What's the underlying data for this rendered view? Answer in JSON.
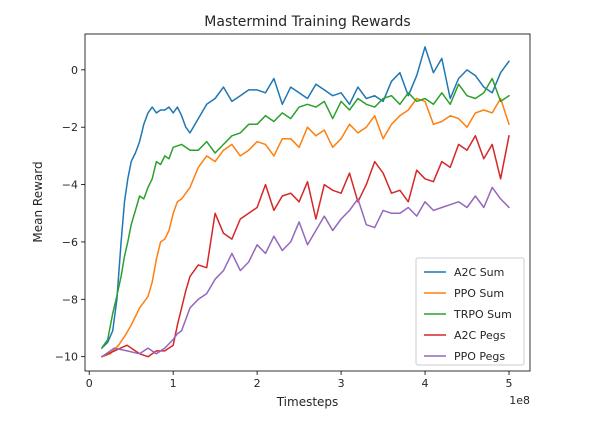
{
  "chart_data": {
    "type": "line",
    "title": "Mastermind Training Rewards",
    "xlabel": "Timesteps",
    "ylabel": "Mean Reward",
    "x_offset_label": "1e8",
    "xlim": [
      -0.05,
      5.25
    ],
    "ylim": [
      -10.5,
      1.25
    ],
    "xticks": [
      0,
      1,
      2,
      3,
      4,
      5
    ],
    "yticks": [
      -10,
      -8,
      -6,
      -4,
      -2,
      0
    ],
    "legend_position": "lower-right",
    "grid": false,
    "series": [
      {
        "name": "A2C Sum",
        "color": "#1f77b4",
        "x": [
          0.15,
          0.22,
          0.28,
          0.33,
          0.38,
          0.42,
          0.46,
          0.5,
          0.55,
          0.6,
          0.65,
          0.7,
          0.75,
          0.8,
          0.85,
          0.9,
          0.95,
          1.0,
          1.05,
          1.1,
          1.15,
          1.2,
          1.3,
          1.4,
          1.5,
          1.6,
          1.7,
          1.8,
          1.9,
          2.0,
          2.1,
          2.2,
          2.3,
          2.4,
          2.5,
          2.6,
          2.7,
          2.8,
          2.9,
          3.0,
          3.1,
          3.2,
          3.3,
          3.4,
          3.5,
          3.6,
          3.7,
          3.8,
          3.9,
          4.0,
          4.1,
          4.2,
          4.3,
          4.4,
          4.5,
          4.6,
          4.7,
          4.8,
          4.9,
          5.0
        ],
        "y": [
          -9.7,
          -9.5,
          -9.1,
          -8.0,
          -6.0,
          -4.6,
          -3.8,
          -3.2,
          -2.9,
          -2.5,
          -1.9,
          -1.5,
          -1.3,
          -1.5,
          -1.4,
          -1.4,
          -1.3,
          -1.5,
          -1.3,
          -1.6,
          -2.0,
          -2.2,
          -1.7,
          -1.2,
          -1.0,
          -0.6,
          -1.1,
          -0.9,
          -0.7,
          -0.7,
          -0.8,
          -0.3,
          -1.2,
          -0.6,
          -0.8,
          -1.0,
          -0.5,
          -0.7,
          -0.9,
          -0.8,
          -1.2,
          -0.6,
          -1.0,
          -0.9,
          -1.1,
          -0.4,
          -0.1,
          -0.9,
          -0.2,
          0.8,
          -0.1,
          0.4,
          -1.0,
          -0.3,
          0.0,
          -0.2,
          -0.6,
          -0.8,
          -0.1,
          0.3
        ]
      },
      {
        "name": "PPO Sum",
        "color": "#ff7f0e",
        "x": [
          0.15,
          0.25,
          0.35,
          0.42,
          0.5,
          0.55,
          0.6,
          0.65,
          0.7,
          0.75,
          0.8,
          0.85,
          0.9,
          0.95,
          1.0,
          1.05,
          1.1,
          1.2,
          1.3,
          1.4,
          1.5,
          1.6,
          1.7,
          1.8,
          1.9,
          2.0,
          2.1,
          2.2,
          2.3,
          2.4,
          2.5,
          2.6,
          2.7,
          2.8,
          2.9,
          3.0,
          3.1,
          3.2,
          3.3,
          3.4,
          3.5,
          3.6,
          3.7,
          3.8,
          3.9,
          4.0,
          4.1,
          4.2,
          4.3,
          4.4,
          4.5,
          4.6,
          4.7,
          4.8,
          4.9,
          5.0
        ],
        "y": [
          -10.0,
          -9.9,
          -9.6,
          -9.3,
          -8.9,
          -8.6,
          -8.3,
          -8.1,
          -7.9,
          -7.4,
          -6.6,
          -6.0,
          -5.9,
          -5.6,
          -5.0,
          -4.6,
          -4.5,
          -4.1,
          -3.4,
          -3.0,
          -3.2,
          -2.8,
          -2.6,
          -3.0,
          -2.8,
          -2.5,
          -2.6,
          -3.0,
          -2.4,
          -2.4,
          -2.7,
          -2.0,
          -2.3,
          -2.1,
          -2.7,
          -2.4,
          -1.9,
          -2.2,
          -2.0,
          -1.6,
          -2.4,
          -1.9,
          -1.6,
          -1.4,
          -1.0,
          -1.1,
          -1.9,
          -1.8,
          -1.6,
          -1.7,
          -2.0,
          -1.5,
          -1.4,
          -1.5,
          -1.0,
          -1.9
        ]
      },
      {
        "name": "TRPO Sum",
        "color": "#2ca02c",
        "x": [
          0.15,
          0.22,
          0.28,
          0.32,
          0.38,
          0.42,
          0.46,
          0.5,
          0.55,
          0.6,
          0.65,
          0.7,
          0.75,
          0.8,
          0.85,
          0.9,
          0.95,
          1.0,
          1.1,
          1.2,
          1.3,
          1.4,
          1.5,
          1.6,
          1.7,
          1.8,
          1.9,
          2.0,
          2.1,
          2.2,
          2.3,
          2.4,
          2.5,
          2.6,
          2.7,
          2.8,
          2.9,
          3.0,
          3.1,
          3.2,
          3.3,
          3.4,
          3.5,
          3.6,
          3.7,
          3.8,
          3.9,
          4.0,
          4.1,
          4.2,
          4.3,
          4.4,
          4.5,
          4.6,
          4.7,
          4.8,
          4.9,
          5.0
        ],
        "y": [
          -9.7,
          -9.4,
          -8.5,
          -8.0,
          -7.2,
          -6.5,
          -6.0,
          -5.4,
          -4.9,
          -4.4,
          -4.5,
          -4.1,
          -3.8,
          -3.2,
          -3.3,
          -3.0,
          -3.1,
          -2.7,
          -2.6,
          -2.8,
          -2.8,
          -2.5,
          -2.9,
          -2.6,
          -2.3,
          -2.2,
          -1.9,
          -1.9,
          -1.6,
          -1.8,
          -1.5,
          -1.7,
          -1.3,
          -1.2,
          -1.3,
          -1.1,
          -1.7,
          -1.1,
          -1.4,
          -1.0,
          -1.2,
          -1.3,
          -1.0,
          -0.9,
          -1.2,
          -0.8,
          -1.1,
          -1.0,
          -1.2,
          -0.8,
          -1.2,
          -0.5,
          -0.9,
          -1.0,
          -0.8,
          -0.3,
          -1.1,
          -0.9
        ]
      },
      {
        "name": "A2C Pegs",
        "color": "#d62728",
        "x": [
          0.15,
          0.3,
          0.45,
          0.6,
          0.7,
          0.8,
          0.9,
          1.0,
          1.05,
          1.1,
          1.15,
          1.2,
          1.3,
          1.4,
          1.5,
          1.6,
          1.7,
          1.8,
          1.9,
          2.0,
          2.1,
          2.2,
          2.3,
          2.4,
          2.5,
          2.6,
          2.7,
          2.8,
          2.9,
          3.0,
          3.1,
          3.2,
          3.3,
          3.4,
          3.5,
          3.6,
          3.7,
          3.8,
          3.9,
          4.0,
          4.1,
          4.2,
          4.3,
          4.4,
          4.5,
          4.6,
          4.7,
          4.8,
          4.9,
          5.0
        ],
        "y": [
          -10.0,
          -9.8,
          -9.6,
          -9.9,
          -10.0,
          -9.8,
          -9.8,
          -9.6,
          -8.9,
          -8.3,
          -7.7,
          -7.2,
          -6.8,
          -6.9,
          -5.0,
          -5.7,
          -5.9,
          -5.2,
          -5.0,
          -4.8,
          -4.0,
          -4.9,
          -4.4,
          -4.3,
          -4.6,
          -3.9,
          -5.2,
          -4.0,
          -4.2,
          -4.3,
          -3.6,
          -4.6,
          -4.0,
          -3.2,
          -3.6,
          -4.3,
          -4.2,
          -4.6,
          -3.5,
          -3.8,
          -3.9,
          -3.2,
          -3.4,
          -2.6,
          -2.8,
          -2.3,
          -3.1,
          -2.6,
          -3.8,
          -2.3
        ]
      },
      {
        "name": "PPO Pegs",
        "color": "#9467bd",
        "x": [
          0.15,
          0.3,
          0.45,
          0.6,
          0.7,
          0.8,
          0.9,
          1.0,
          1.05,
          1.1,
          1.2,
          1.3,
          1.4,
          1.5,
          1.6,
          1.7,
          1.8,
          1.9,
          2.0,
          2.1,
          2.2,
          2.3,
          2.4,
          2.5,
          2.6,
          2.7,
          2.8,
          2.9,
          3.0,
          3.1,
          3.2,
          3.3,
          3.4,
          3.5,
          3.6,
          3.7,
          3.8,
          3.9,
          4.0,
          4.1,
          4.2,
          4.3,
          4.4,
          4.5,
          4.6,
          4.7,
          4.8,
          4.9,
          5.0
        ],
        "y": [
          -10.0,
          -9.7,
          -9.8,
          -9.9,
          -9.7,
          -9.9,
          -9.7,
          -9.4,
          -9.2,
          -9.1,
          -8.3,
          -8.0,
          -7.8,
          -7.3,
          -7.0,
          -6.4,
          -7.0,
          -6.7,
          -6.1,
          -6.4,
          -5.8,
          -6.3,
          -6.0,
          -5.3,
          -6.1,
          -5.6,
          -5.1,
          -5.6,
          -5.2,
          -4.9,
          -4.5,
          -5.4,
          -5.5,
          -4.9,
          -5.0,
          -5.0,
          -4.8,
          -5.1,
          -4.6,
          -4.9,
          -4.8,
          -4.7,
          -4.6,
          -4.8,
          -4.4,
          -4.8,
          -4.1,
          -4.5,
          -4.8
        ]
      }
    ]
  }
}
